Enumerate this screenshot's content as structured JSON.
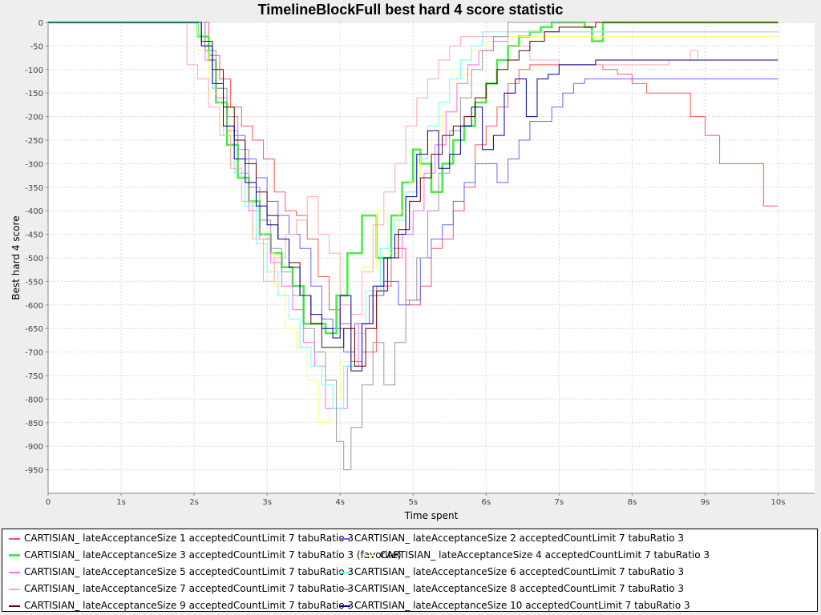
{
  "chart_data": {
    "type": "line",
    "title": "TimelineBlockFull best hard 4 score statistic",
    "xlabel": "Time spent",
    "ylabel": "Best hard 4 score",
    "xlim": [
      0,
      10.5
    ],
    "ylim": [
      -1000,
      0
    ],
    "x_ticks": [
      0,
      1,
      2,
      3,
      4,
      5,
      6,
      7,
      8,
      9,
      10
    ],
    "x_tick_labels": [
      "0",
      "1s",
      "2s",
      "3s",
      "4s",
      "5s",
      "6s",
      "7s",
      "8s",
      "9s",
      "10s"
    ],
    "y_ticks": [
      0,
      -50,
      -100,
      -150,
      -200,
      -250,
      -300,
      -350,
      -400,
      -450,
      -500,
      -550,
      -600,
      -650,
      -700,
      -750,
      -800,
      -850,
      -900,
      -950
    ],
    "y_tick_labels": [
      "0",
      "-50",
      "-100",
      "-150",
      "-200",
      "-250",
      "-300",
      "-350",
      "-400",
      "-450",
      "-500",
      "-550",
      "-600",
      "-650",
      "-700",
      "-750",
      "-800",
      "-850",
      "-900",
      "-950"
    ],
    "grid": true,
    "legend_position": "bottom",
    "line_style": "step",
    "series": [
      {
        "name": "CARTISIAN_ lateAcceptanceSize 1 acceptedCountLimit 7 tabuRatio 3",
        "color": "#ff5555",
        "width": 1,
        "x": [
          0,
          2.0,
          2.2,
          2.35,
          2.5,
          2.65,
          2.8,
          2.95,
          3.1,
          3.25,
          3.4,
          3.55,
          3.7,
          3.85,
          4.0,
          4.15,
          4.3,
          4.5,
          4.7,
          4.9,
          5.1,
          5.25,
          5.4,
          5.55,
          5.7,
          5.85,
          6.0,
          6.15,
          6.3,
          6.45,
          6.6,
          6.8,
          7.0,
          7.2,
          7.4,
          7.6,
          7.8,
          8.0,
          8.2,
          8.4,
          8.6,
          8.8,
          9.0,
          9.2,
          9.5,
          9.8,
          10.0
        ],
        "y": [
          0,
          0,
          -70,
          -120,
          -180,
          -220,
          -250,
          -290,
          -360,
          -400,
          -410,
          -460,
          -540,
          -610,
          -640,
          -720,
          -700,
          -560,
          -480,
          -600,
          -560,
          -480,
          -460,
          -400,
          -350,
          -260,
          -220,
          -180,
          -130,
          -100,
          -90,
          -90,
          -90,
          -90,
          -90,
          -100,
          -110,
          -130,
          -150,
          -150,
          -150,
          -200,
          -240,
          -300,
          -300,
          -390,
          -390
        ]
      },
      {
        "name": "CARTISIAN_ lateAcceptanceSize 2 acceptedCountLimit 7 tabuRatio 3",
        "color": "#6666ff",
        "width": 1,
        "x": [
          0,
          1.95,
          2.1,
          2.25,
          2.4,
          2.55,
          2.7,
          2.85,
          3.0,
          3.15,
          3.3,
          3.45,
          3.6,
          3.75,
          3.9,
          4.05,
          4.2,
          4.4,
          4.6,
          4.8,
          4.95,
          5.1,
          5.25,
          5.4,
          5.55,
          5.7,
          5.85,
          6.0,
          6.15,
          6.3,
          6.45,
          6.6,
          6.75,
          6.9,
          7.05,
          7.2,
          7.35,
          7.5,
          7.7,
          7.9,
          8.1,
          8.4,
          8.7,
          9.0,
          9.5,
          10.0
        ],
        "y": [
          0,
          0,
          -50,
          -140,
          -220,
          -240,
          -290,
          -330,
          -380,
          -410,
          -450,
          -480,
          -560,
          -630,
          -650,
          -700,
          -640,
          -580,
          -550,
          -600,
          -590,
          -500,
          -460,
          -430,
          -380,
          -340,
          -300,
          -300,
          -340,
          -290,
          -250,
          -210,
          -210,
          -180,
          -150,
          -130,
          -120,
          -120,
          -120,
          -120,
          -120,
          -120,
          -120,
          -120,
          -120,
          -120
        ]
      },
      {
        "name": "CARTISIAN_ lateAcceptanceSize 3 acceptedCountLimit 7 tabuRatio 3 (favorite)",
        "color": "#44ee44",
        "width": 2.5,
        "x": [
          0,
          1.95,
          2.05,
          2.2,
          2.3,
          2.45,
          2.6,
          2.75,
          2.9,
          3.05,
          3.2,
          3.35,
          3.5,
          3.65,
          3.8,
          3.95,
          4.1,
          4.3,
          4.5,
          4.7,
          4.85,
          5.0,
          5.1,
          5.25,
          5.4,
          5.55,
          5.7,
          5.85,
          6.0,
          6.15,
          6.3,
          6.45,
          6.6,
          6.75,
          6.9,
          7.05,
          7.2,
          7.35,
          7.45,
          7.6,
          7.8,
          10.0
        ],
        "y": [
          0,
          0,
          -30,
          -80,
          -170,
          -260,
          -330,
          -380,
          -450,
          -490,
          -520,
          -560,
          -640,
          -640,
          -660,
          -580,
          -490,
          -410,
          -500,
          -410,
          -340,
          -270,
          -300,
          -360,
          -300,
          -250,
          -220,
          -170,
          -130,
          -80,
          -50,
          -30,
          -20,
          -10,
          0,
          0,
          0,
          -10,
          -40,
          0,
          0,
          0
        ]
      },
      {
        "name": "CARTISIAN_ lateAcceptanceSize 4 acceptedCountLimit 7 tabuRatio 3",
        "color": "#ffff66",
        "width": 1,
        "x": [
          0,
          1.95,
          2.05,
          2.2,
          2.35,
          2.5,
          2.65,
          2.8,
          2.95,
          3.1,
          3.25,
          3.4,
          3.55,
          3.7,
          3.85,
          4.0,
          4.15,
          4.3,
          4.5,
          4.65,
          4.8,
          4.95,
          5.1,
          5.25,
          5.4,
          5.6,
          5.8,
          6.0,
          6.3,
          6.6,
          7.0,
          7.5,
          8.0,
          9.0,
          10.0
        ],
        "y": [
          0,
          0,
          -60,
          -150,
          -220,
          -300,
          -380,
          -440,
          -490,
          -560,
          -650,
          -690,
          -760,
          -850,
          -800,
          -720,
          -620,
          -520,
          -400,
          -490,
          -400,
          -340,
          -280,
          -230,
          -190,
          -110,
          -60,
          -40,
          -30,
          -30,
          -30,
          -30,
          -30,
          -30,
          -30
        ]
      },
      {
        "name": "CARTISIAN_ lateAcceptanceSize 5 acceptedCountLimit 7 tabuRatio 3",
        "color": "#ff66ff",
        "width": 1,
        "x": [
          0,
          2.0,
          2.15,
          2.3,
          2.45,
          2.6,
          2.75,
          2.9,
          3.05,
          3.2,
          3.35,
          3.5,
          3.65,
          3.8,
          3.95,
          4.1,
          4.25,
          4.45,
          4.65,
          4.85,
          5.0,
          5.15,
          5.3,
          5.45,
          5.6,
          5.75,
          5.9,
          6.1,
          6.3,
          6.6,
          7.0,
          7.5,
          8.0,
          9.0,
          10.0
        ],
        "y": [
          0,
          0,
          -80,
          -160,
          -230,
          -320,
          -400,
          -460,
          -510,
          -560,
          -610,
          -680,
          -730,
          -820,
          -820,
          -730,
          -640,
          -570,
          -500,
          -450,
          -400,
          -320,
          -260,
          -190,
          -130,
          -90,
          -60,
          -40,
          -20,
          -20,
          -20,
          -20,
          -20,
          -20,
          -20
        ]
      },
      {
        "name": "CARTISIAN_ lateAcceptanceSize 6 acceptedCountLimit 7 tabuRatio 3",
        "color": "#66ffff",
        "width": 1,
        "x": [
          0,
          1.95,
          2.1,
          2.25,
          2.4,
          2.55,
          2.7,
          2.85,
          3.0,
          3.15,
          3.3,
          3.45,
          3.6,
          3.75,
          3.9,
          4.05,
          4.2,
          4.35,
          4.55,
          4.75,
          4.9,
          5.05,
          5.2,
          5.35,
          5.5,
          5.65,
          5.8,
          5.95,
          6.1,
          6.3,
          6.6,
          7.0,
          7.5,
          8.0,
          9.0,
          10.0
        ],
        "y": [
          0,
          0,
          -50,
          -140,
          -240,
          -320,
          -390,
          -470,
          -530,
          -580,
          -630,
          -690,
          -730,
          -770,
          -820,
          -730,
          -660,
          -570,
          -480,
          -420,
          -360,
          -290,
          -220,
          -170,
          -120,
          -80,
          -50,
          -20,
          -20,
          -20,
          -20,
          -20,
          -20,
          -20,
          -20,
          -20
        ]
      },
      {
        "name": "CARTISIAN_ lateAcceptanceSize 7 acceptedCountLimit 7 tabuRatio 3",
        "color": "#ffaaaa",
        "width": 1,
        "x": [
          0,
          1.75,
          1.9,
          2.05,
          2.2,
          2.35,
          2.5,
          2.65,
          2.8,
          2.95,
          3.1,
          3.25,
          3.4,
          3.55,
          3.7,
          3.85,
          4.0,
          4.15,
          4.3,
          4.45,
          4.6,
          4.75,
          4.9,
          5.05,
          5.2,
          5.35,
          5.5,
          5.65,
          5.8,
          6.0,
          6.3,
          6.6,
          7.0,
          7.5,
          8.0,
          8.5,
          8.7,
          8.8,
          8.9,
          9.0,
          10.0
        ],
        "y": [
          0,
          0,
          -90,
          -120,
          -180,
          -240,
          -310,
          -380,
          -460,
          -550,
          -500,
          -450,
          -420,
          -370,
          -450,
          -490,
          -600,
          -620,
          -530,
          -430,
          -360,
          -300,
          -220,
          -160,
          -120,
          -80,
          -50,
          -30,
          -30,
          -30,
          -50,
          -80,
          -90,
          -90,
          -90,
          -80,
          -80,
          -60,
          -80,
          -80,
          -80
        ]
      },
      {
        "name": "CARTISIAN_ lateAcceptanceSize 8 acceptedCountLimit 7 tabuRatio 3",
        "color": "#999999",
        "width": 1,
        "x": [
          0,
          2.0,
          2.15,
          2.3,
          2.45,
          2.6,
          2.75,
          2.9,
          3.05,
          3.2,
          3.35,
          3.5,
          3.65,
          3.8,
          3.95,
          4.05,
          4.15,
          4.3,
          4.45,
          4.6,
          4.75,
          4.9,
          5.05,
          5.2,
          5.35,
          5.5,
          5.65,
          5.8,
          5.95,
          6.1,
          6.3,
          6.5,
          6.7,
          7.0,
          7.5,
          8.0,
          9.0,
          10.0
        ],
        "y": [
          0,
          0,
          -60,
          -140,
          -200,
          -270,
          -350,
          -420,
          -480,
          -530,
          -580,
          -650,
          -700,
          -760,
          -890,
          -950,
          -860,
          -770,
          -680,
          -770,
          -680,
          -590,
          -500,
          -400,
          -320,
          -230,
          -160,
          -100,
          -60,
          -30,
          0,
          0,
          0,
          0,
          0,
          0,
          0,
          0
        ]
      },
      {
        "name": "CARTISIAN_ lateAcceptanceSize 9 acceptedCountLimit 7 tabuRatio 3",
        "color": "#660000",
        "width": 1,
        "x": [
          0,
          1.95,
          2.1,
          2.25,
          2.4,
          2.55,
          2.7,
          2.85,
          3.0,
          3.15,
          3.3,
          3.45,
          3.6,
          3.75,
          3.9,
          4.05,
          4.2,
          4.35,
          4.5,
          4.65,
          4.8,
          4.95,
          5.1,
          5.25,
          5.4,
          5.55,
          5.7,
          5.85,
          6.0,
          6.15,
          6.3,
          6.45,
          6.6,
          6.8,
          7.0,
          7.5,
          8.0,
          9.0,
          10.0
        ],
        "y": [
          0,
          0,
          -40,
          -100,
          -180,
          -250,
          -300,
          -360,
          -410,
          -460,
          -510,
          -580,
          -640,
          -690,
          -690,
          -650,
          -730,
          -650,
          -570,
          -500,
          -440,
          -380,
          -330,
          -280,
          -240,
          -220,
          -200,
          -160,
          -130,
          -100,
          -80,
          -60,
          -40,
          -20,
          -10,
          0,
          0,
          0,
          0
        ]
      },
      {
        "name": "CARTISIAN_ lateAcceptanceSize 10 acceptedCountLimit 7 tabuRatio 3",
        "color": "#000099",
        "width": 1,
        "x": [
          0,
          1.95,
          2.1,
          2.25,
          2.4,
          2.55,
          2.7,
          2.85,
          3.0,
          3.15,
          3.3,
          3.45,
          3.6,
          3.75,
          3.9,
          4.0,
          4.15,
          4.3,
          4.45,
          4.6,
          4.75,
          4.9,
          5.05,
          5.2,
          5.35,
          5.5,
          5.65,
          5.8,
          5.95,
          6.1,
          6.25,
          6.4,
          6.55,
          6.7,
          6.85,
          7.0,
          7.3,
          7.5,
          7.6,
          8.0,
          9.0,
          10.0
        ],
        "y": [
          0,
          0,
          -50,
          -130,
          -220,
          -290,
          -340,
          -390,
          -430,
          -460,
          -520,
          -580,
          -620,
          -650,
          -670,
          -580,
          -740,
          -640,
          -560,
          -500,
          -450,
          -370,
          -280,
          -230,
          -310,
          -280,
          -220,
          -180,
          -270,
          -240,
          -150,
          -120,
          -200,
          -120,
          -110,
          -90,
          -90,
          -80,
          -80,
          -80,
          -80,
          -80
        ]
      }
    ]
  }
}
